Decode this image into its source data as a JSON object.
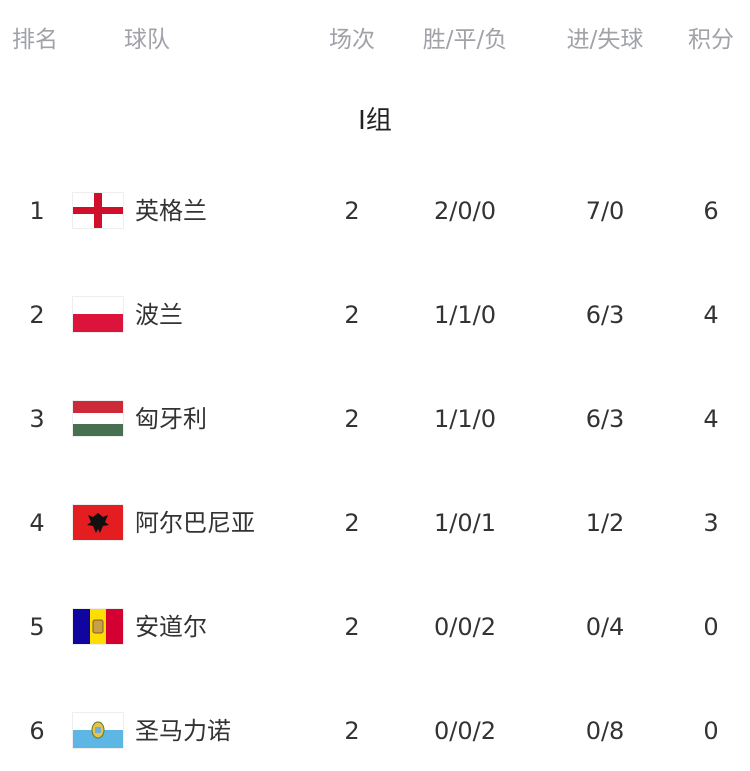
{
  "header": {
    "rank": "排名",
    "team": "球队",
    "played": "场次",
    "wdl": "胜/平/负",
    "goals": "进/失球",
    "points": "积分"
  },
  "group_title": "I组",
  "rows": [
    {
      "rank": "1",
      "team": "英格兰",
      "flag": "england-flag",
      "played": "2",
      "wdl": "2/0/0",
      "goals": "7/0",
      "points": "6"
    },
    {
      "rank": "2",
      "team": "波兰",
      "flag": "poland-flag",
      "played": "2",
      "wdl": "1/1/0",
      "goals": "6/3",
      "points": "4"
    },
    {
      "rank": "3",
      "team": "匈牙利",
      "flag": "hungary-flag",
      "played": "2",
      "wdl": "1/1/0",
      "goals": "6/3",
      "points": "4"
    },
    {
      "rank": "4",
      "team": "阿尔巴尼亚",
      "flag": "albania-flag",
      "played": "2",
      "wdl": "1/0/1",
      "goals": "1/2",
      "points": "3"
    },
    {
      "rank": "5",
      "team": "安道尔",
      "flag": "andorra-flag",
      "played": "2",
      "wdl": "0/0/2",
      "goals": "0/4",
      "points": "0"
    },
    {
      "rank": "6",
      "team": "圣马力诺",
      "flag": "san-marino-flag",
      "played": "2",
      "wdl": "0/0/2",
      "goals": "0/8",
      "points": "0"
    }
  ]
}
